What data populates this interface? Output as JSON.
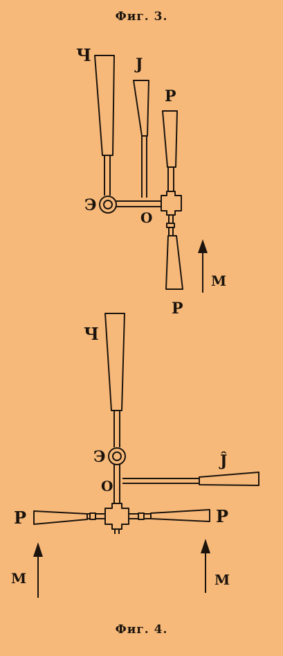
{
  "figure3": {
    "caption": "Фиг. 3.",
    "labels": {
      "top_left": "Ч",
      "top_mid": "J",
      "top_right": "P",
      "bottom": "P",
      "pivot": "Э",
      "center": "О",
      "arrow": "М"
    }
  },
  "figure4": {
    "caption": "Фиг. 4.",
    "labels": {
      "top": "Ч",
      "pivot": "Э",
      "right_blade": "Ĵ",
      "center": "О",
      "left_blade": "P",
      "right_P": "P",
      "arrow_left": "М",
      "arrow_right": "М"
    }
  },
  "colors": {
    "paper": "#f6b97a",
    "ink": "#1b130c"
  }
}
